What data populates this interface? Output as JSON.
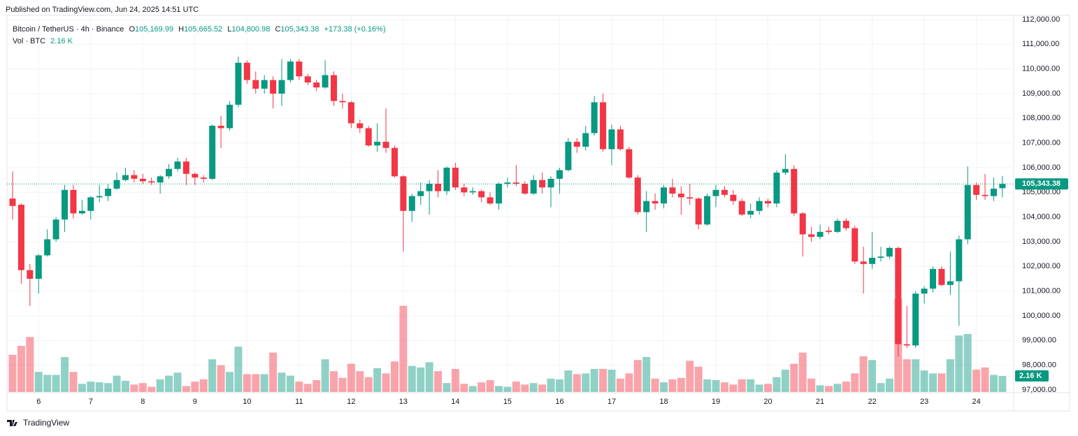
{
  "header": {
    "published": "Published on TradingView.com, Jun 24, 2025 14:51 UTC",
    "footer": "TradingView"
  },
  "chart_data": {
    "type": "candlestick",
    "title": "Bitcoin / TetherUS · 4h · Binance",
    "legend": [
      {
        "key": "O",
        "value": "105,169.99"
      },
      {
        "key": "H",
        "value": "105,665.52"
      },
      {
        "key": "L",
        "value": "104,800.98"
      },
      {
        "key": "C",
        "value": "105,343.38"
      }
    ],
    "change": "+173.38 (+0.16%)",
    "last_price_label": "105,343.38",
    "up_color": "#089981",
    "down_color": "#f23645",
    "grid": true,
    "categories": [
      null,
      null,
      null,
      "6",
      null,
      null,
      null,
      null,
      null,
      "7",
      null,
      null,
      null,
      null,
      null,
      "8",
      null,
      null,
      null,
      null,
      null,
      "9",
      null,
      null,
      null,
      null,
      null,
      "10",
      null,
      null,
      null,
      null,
      null,
      "11",
      null,
      null,
      null,
      null,
      null,
      "12",
      null,
      null,
      null,
      null,
      null,
      "13",
      null,
      null,
      null,
      null,
      null,
      "14",
      null,
      null,
      null,
      null,
      null,
      "15",
      null,
      null,
      null,
      null,
      null,
      "16",
      null,
      null,
      null,
      null,
      null,
      "17",
      null,
      null,
      null,
      null,
      null,
      "18",
      null,
      null,
      null,
      null,
      null,
      "19",
      null,
      null,
      null,
      null,
      null,
      "20",
      null,
      null,
      null,
      null,
      null,
      "21",
      null,
      null,
      null,
      null,
      null,
      "22",
      null,
      null,
      null,
      null,
      null,
      "23",
      null,
      null,
      null,
      null,
      null,
      "24",
      null,
      null,
      null
    ],
    "open": [
      104750,
      104500,
      101850,
      101500,
      102450,
      103100,
      103900,
      105100,
      104150,
      104250,
      104800,
      104850,
      105150,
      105500,
      105700,
      105550,
      105450,
      105400,
      105650,
      105950,
      106250,
      105750,
      105600,
      105550,
      107700,
      107600,
      108550,
      110250,
      109550,
      109200,
      109550,
      109000,
      109550,
      110300,
      109700,
      109450,
      109250,
      109750,
      108700,
      108650,
      107800,
      107600,
      106900,
      107050,
      106800,
      105650,
      104250,
      104850,
      105050,
      105350,
      105050,
      106000,
      105200,
      105000,
      105050,
      104800,
      104550,
      105350,
      105400,
      105350,
      104950,
      105500,
      105200,
      105550,
      105900,
      107050,
      106850,
      107400,
      108650,
      106750,
      107550,
      106750,
      105600,
      104200,
      104650,
      104550,
      105200,
      104950,
      104800,
      104750,
      103700,
      104850,
      105100,
      104900,
      104650,
      104100,
      104250,
      104650,
      104550,
      105800,
      105950,
      104150,
      103300,
      103200,
      103450,
      103400,
      103850,
      103550,
      102200,
      102100,
      102350,
      102400,
      102750,
      98850,
      98800,
      100900,
      101100,
      101900,
      101250,
      101400,
      103100,
      105300,
      104900,
      104850,
      105169.99
    ],
    "high": [
      105850,
      104550,
      102100,
      102500,
      103500,
      104000,
      105300,
      105300,
      104700,
      104850,
      105300,
      105350,
      105800,
      106000,
      105900,
      105750,
      105600,
      105700,
      106150,
      106400,
      106400,
      105800,
      105700,
      107750,
      108100,
      108700,
      110500,
      110350,
      109900,
      109750,
      109700,
      110400,
      110400,
      110400,
      109800,
      109550,
      110350,
      109900,
      109000,
      108700,
      107950,
      107700,
      107800,
      108400,
      106900,
      105700,
      104950,
      105400,
      105500,
      105900,
      106050,
      106200,
      105350,
      105200,
      105100,
      105000,
      105400,
      105600,
      106100,
      105450,
      105700,
      105800,
      105650,
      106000,
      107200,
      107200,
      107700,
      108900,
      109000,
      107750,
      107700,
      106850,
      105700,
      105050,
      104950,
      105300,
      105550,
      105250,
      105350,
      104800,
      104950,
      105300,
      105250,
      105100,
      104750,
      104550,
      104800,
      104750,
      105900,
      106550,
      106100,
      104200,
      103600,
      103700,
      103600,
      103950,
      103950,
      103650,
      102800,
      103400,
      102800,
      102800,
      102800,
      100400,
      101000,
      101200,
      102000,
      102000,
      102600,
      103250,
      106050,
      105400,
      105750,
      105600,
      105665.52
    ],
    "low": [
      103900,
      101300,
      100400,
      100900,
      102400,
      103000,
      103400,
      103950,
      104100,
      103900,
      104600,
      104650,
      105100,
      105450,
      105400,
      105350,
      105300,
      104950,
      105550,
      105850,
      105300,
      105300,
      105400,
      105500,
      106800,
      107500,
      108450,
      109400,
      109000,
      109000,
      108400,
      108500,
      109450,
      109550,
      109350,
      109100,
      109200,
      108500,
      108400,
      107600,
      107400,
      106850,
      106650,
      106600,
      105600,
      102600,
      103800,
      104500,
      104100,
      104800,
      104900,
      105100,
      104850,
      104900,
      104600,
      104500,
      104300,
      105200,
      105250,
      104900,
      104900,
      104950,
      104400,
      104950,
      105850,
      106600,
      106700,
      107300,
      106650,
      106100,
      106700,
      105550,
      104100,
      103400,
      104300,
      104350,
      104800,
      104100,
      104500,
      103500,
      103650,
      104400,
      104800,
      104500,
      104050,
      103950,
      104100,
      104400,
      104400,
      105700,
      104050,
      102400,
      103000,
      103100,
      103300,
      103350,
      103450,
      102100,
      100900,
      101900,
      102200,
      102300,
      98350,
      98700,
      98700,
      100500,
      100950,
      101200,
      100850,
      99600,
      102900,
      104700,
      104700,
      104650,
      104800.98
    ],
    "close": [
      104450,
      101850,
      101500,
      102450,
      103100,
      103900,
      105100,
      104150,
      104250,
      104800,
      104850,
      105150,
      105500,
      105700,
      105550,
      105450,
      105400,
      105650,
      105950,
      106250,
      105750,
      105600,
      105550,
      107700,
      107600,
      108550,
      110250,
      109550,
      109200,
      109550,
      109000,
      109550,
      110300,
      109700,
      109450,
      109250,
      109750,
      108700,
      108650,
      107800,
      107600,
      106900,
      107050,
      106800,
      105650,
      104250,
      104850,
      105050,
      105350,
      105050,
      106000,
      105200,
      105000,
      105050,
      104800,
      104550,
      105350,
      105400,
      105350,
      104950,
      105500,
      105200,
      105550,
      105900,
      107050,
      106850,
      107400,
      108650,
      106750,
      107550,
      106750,
      105600,
      104200,
      104650,
      104550,
      105200,
      104950,
      104800,
      104750,
      103700,
      104850,
      105100,
      104900,
      104650,
      104100,
      104250,
      104650,
      104550,
      105800,
      105950,
      104150,
      103300,
      103200,
      103400,
      103400,
      103850,
      103550,
      102200,
      102100,
      102350,
      102400,
      102750,
      98850,
      98800,
      100900,
      101100,
      101900,
      101250,
      101400,
      103100,
      105300,
      104900,
      104850,
      105150,
      105343.38
    ],
    "volume": {
      "name": "Vol · BTC",
      "last_label": "2.16 K",
      "values": [
        5.0,
        6.2,
        7.4,
        2.7,
        2.3,
        2.3,
        4.7,
        2.7,
        1.1,
        1.4,
        1.3,
        1.2,
        2.2,
        1.5,
        1.0,
        1.2,
        0.7,
        1.7,
        2.2,
        2.6,
        0.8,
        1.4,
        1.7,
        4.4,
        3.6,
        2.7,
        6.1,
        2.4,
        2.4,
        2.4,
        5.3,
        2.6,
        2.2,
        1.4,
        1.1,
        1.6,
        4.4,
        2.8,
        1.9,
        3.8,
        2.8,
        2.0,
        3.2,
        2.5,
        4.1,
        11.6,
        3.5,
        3.3,
        4.0,
        2.8,
        1.2,
        3.1,
        1.1,
        0.8,
        1.3,
        1.6,
        0.8,
        0.7,
        1.4,
        1.0,
        1.2,
        1.0,
        1.8,
        1.7,
        2.9,
        2.4,
        2.5,
        3.1,
        3.1,
        3.0,
        1.8,
        2.5,
        4.3,
        4.7,
        1.8,
        1.3,
        1.7,
        1.9,
        4.2,
        3.4,
        1.7,
        1.6,
        1.3,
        1.0,
        1.7,
        1.7,
        1.0,
        1.1,
        2.0,
        3.0,
        3.8,
        5.3,
        1.8,
        0.9,
        0.8,
        1.1,
        1.4,
        2.5,
        4.8,
        4.3,
        1.2,
        1.8,
        12.5,
        4.4,
        4.4,
        2.9,
        2.5,
        2.5,
        4.4,
        7.6,
        7.8,
        3.0,
        3.3,
        2.3,
        2.16
      ]
    },
    "ylim": [
      97000,
      112000
    ],
    "yticks": [
      {
        "value": 97000,
        "label": "97,000.00"
      },
      {
        "value": 98000,
        "label": "98,000.00"
      },
      {
        "value": 99000,
        "label": "99,000.00"
      },
      {
        "value": 100000,
        "label": "100,000.00"
      },
      {
        "value": 101000,
        "label": "101,000.00"
      },
      {
        "value": 102000,
        "label": "102,000.00"
      },
      {
        "value": 103000,
        "label": "103,000.00"
      },
      {
        "value": 104000,
        "label": "104,000.00"
      },
      {
        "value": 105000,
        "label": "105,000.00"
      },
      {
        "value": 106000,
        "label": "106,000.00"
      },
      {
        "value": 107000,
        "label": "107,000.00"
      },
      {
        "value": 108000,
        "label": "108,000.00"
      },
      {
        "value": 109000,
        "label": "109,000.00"
      },
      {
        "value": 110000,
        "label": "110,000.00"
      },
      {
        "value": 111000,
        "label": "111,000.00"
      },
      {
        "value": 112000,
        "label": "112,000.00"
      }
    ]
  }
}
